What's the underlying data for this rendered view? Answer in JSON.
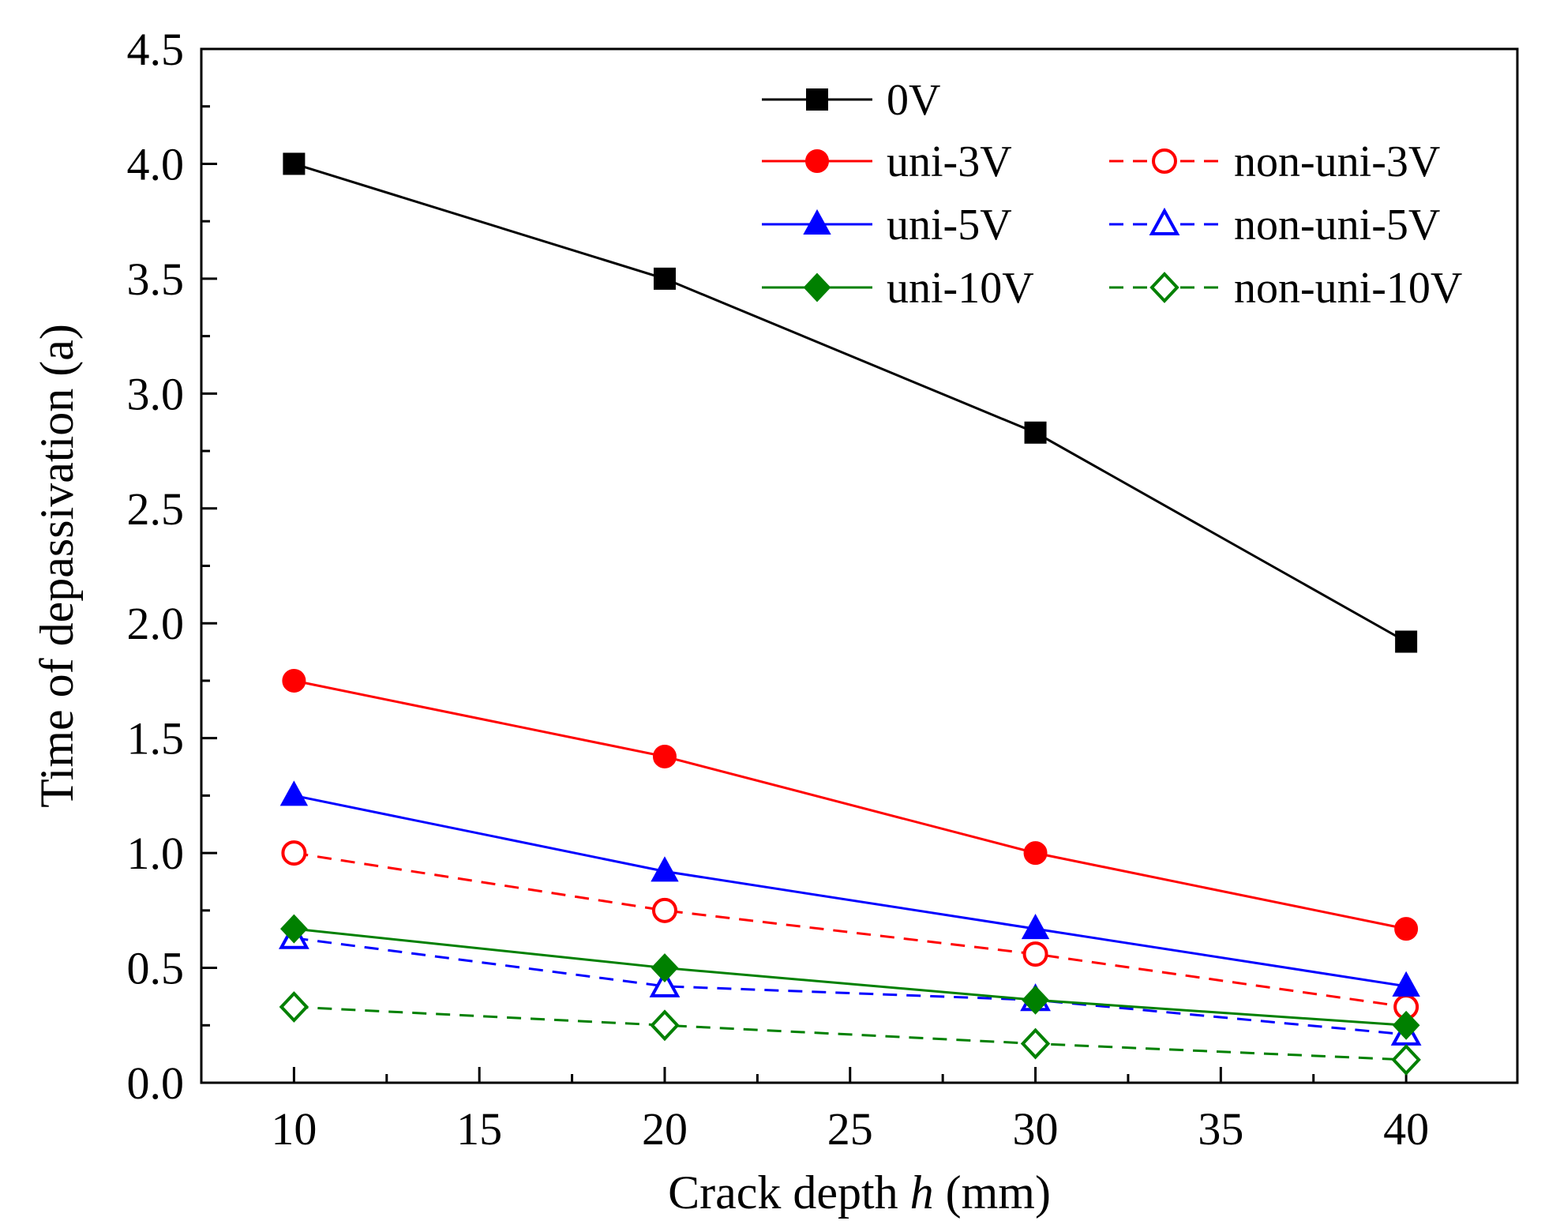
{
  "chart_data": {
    "type": "line",
    "title": "",
    "xlabel": {
      "prefix": "Crack depth ",
      "variable": "h",
      "suffix": " (mm)"
    },
    "ylabel": "Time of depassivation (a)",
    "xlim": [
      7.5,
      43
    ],
    "ylim": [
      0,
      4.5
    ],
    "x_major_ticks": [
      10,
      15,
      20,
      25,
      30,
      35,
      40
    ],
    "x_tick_labels": [
      "10",
      "15",
      "20",
      "25",
      "30",
      "35",
      "40"
    ],
    "y_major_ticks": [
      0,
      0.5,
      1.0,
      1.5,
      2.0,
      2.5,
      3.0,
      3.5,
      4.0,
      4.5
    ],
    "y_tick_labels": [
      "0.0",
      "0.5",
      "1.0",
      "1.5",
      "2.0",
      "2.5",
      "3.0",
      "3.5",
      "4.0",
      "4.5"
    ],
    "grid": false,
    "legend_position": "top-right",
    "x": [
      10,
      20,
      30,
      40
    ],
    "series": [
      {
        "name": "0V",
        "color": "#000000",
        "marker": "square",
        "filled": true,
        "dashed": false,
        "values": [
          4.0,
          3.5,
          2.83,
          1.92
        ]
      },
      {
        "name": "uni-3V",
        "color": "#ff0000",
        "marker": "circle",
        "filled": true,
        "dashed": false,
        "values": [
          1.75,
          1.42,
          1.0,
          0.67
        ]
      },
      {
        "name": "non-uni-3V",
        "color": "#ff0000",
        "marker": "circle",
        "filled": false,
        "dashed": true,
        "values": [
          1.0,
          0.75,
          0.56,
          0.33
        ]
      },
      {
        "name": "uni-5V",
        "color": "#0000ff",
        "marker": "triangle",
        "filled": true,
        "dashed": false,
        "values": [
          1.25,
          0.92,
          0.67,
          0.42
        ]
      },
      {
        "name": "non-uni-5V",
        "color": "#0000ff",
        "marker": "triangle",
        "filled": false,
        "dashed": true,
        "values": [
          0.63,
          0.42,
          0.36,
          0.21
        ]
      },
      {
        "name": "uni-10V",
        "color": "#008000",
        "marker": "diamond",
        "filled": true,
        "dashed": false,
        "values": [
          0.67,
          0.5,
          0.36,
          0.25
        ]
      },
      {
        "name": "non-uni-10V",
        "color": "#008000",
        "marker": "diamond",
        "filled": false,
        "dashed": true,
        "values": [
          0.33,
          0.25,
          0.17,
          0.1
        ]
      }
    ]
  }
}
